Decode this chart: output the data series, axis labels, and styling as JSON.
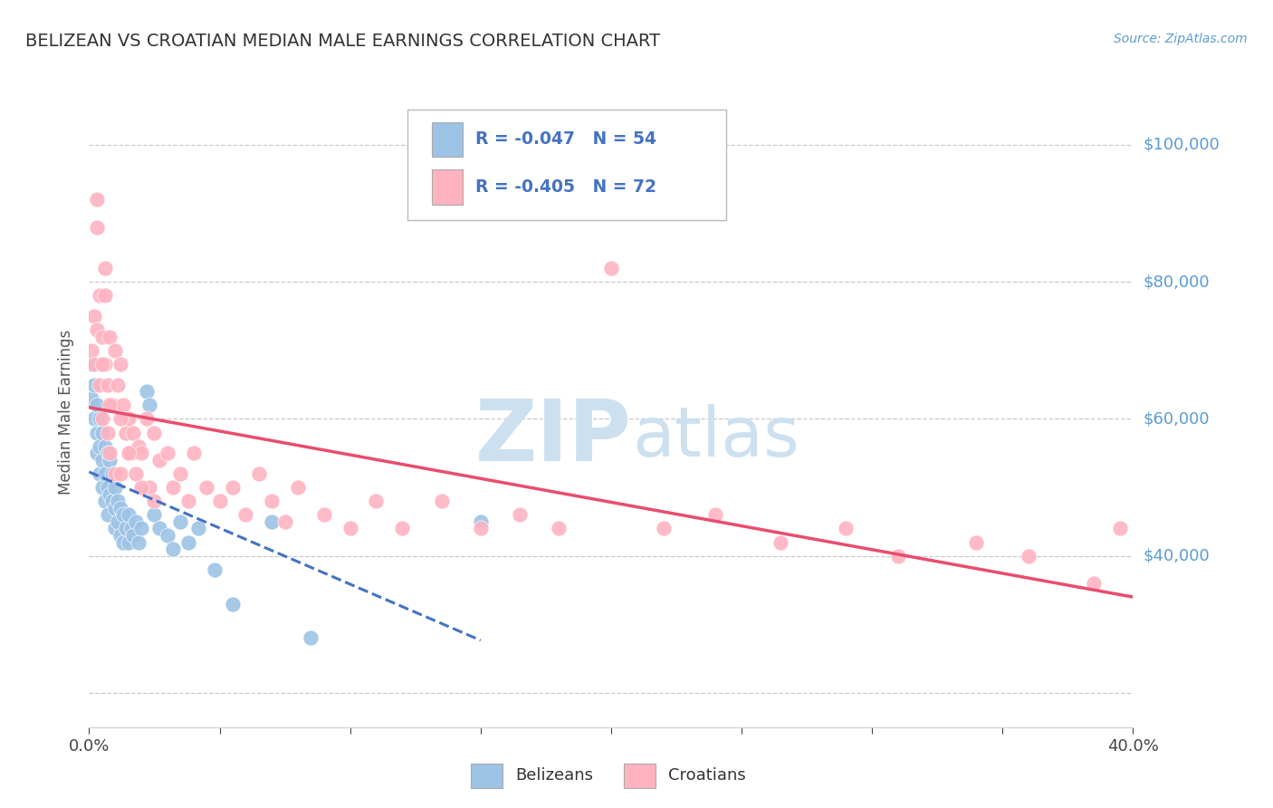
{
  "title": "BELIZEAN VS CROATIAN MEDIAN MALE EARNINGS CORRELATION CHART",
  "source_text": "Source: ZipAtlas.com",
  "ylabel": "Median Male Earnings",
  "xlim": [
    0.0,
    0.4
  ],
  "ylim": [
    15000,
    107000
  ],
  "xticks": [
    0.0,
    0.05,
    0.1,
    0.15,
    0.2,
    0.25,
    0.3,
    0.35,
    0.4
  ],
  "xticklabels": [
    "0.0%",
    "",
    "",
    "",
    "",
    "",
    "",
    "",
    "40.0%"
  ],
  "yticks": [
    20000,
    40000,
    60000,
    80000,
    100000
  ],
  "title_color": "#333333",
  "grid_color": "#bbbbbb",
  "right_label_color": "#5b9bd5",
  "belizean_color": "#9dc3e6",
  "croatian_color": "#ffb3c1",
  "belizean_line_color": "#4472c4",
  "croatian_line_color": "#e84d6e",
  "legend_text_color": "#4472c4",
  "watermark_color": "#cce0f0",
  "belizeans_x": [
    0.001,
    0.001,
    0.002,
    0.002,
    0.003,
    0.003,
    0.003,
    0.004,
    0.004,
    0.004,
    0.005,
    0.005,
    0.005,
    0.006,
    0.006,
    0.006,
    0.007,
    0.007,
    0.007,
    0.008,
    0.008,
    0.009,
    0.009,
    0.01,
    0.01,
    0.01,
    0.011,
    0.011,
    0.012,
    0.012,
    0.013,
    0.013,
    0.014,
    0.015,
    0.015,
    0.016,
    0.017,
    0.018,
    0.019,
    0.02,
    0.022,
    0.023,
    0.025,
    0.027,
    0.03,
    0.032,
    0.035,
    0.038,
    0.042,
    0.048,
    0.055,
    0.07,
    0.085,
    0.15
  ],
  "belizeans_y": [
    68000,
    63000,
    65000,
    60000,
    62000,
    58000,
    55000,
    60000,
    56000,
    52000,
    58000,
    54000,
    50000,
    56000,
    52000,
    48000,
    55000,
    50000,
    46000,
    54000,
    49000,
    52000,
    48000,
    50000,
    47000,
    44000,
    48000,
    45000,
    47000,
    43000,
    46000,
    42000,
    44000,
    46000,
    42000,
    44000,
    43000,
    45000,
    42000,
    44000,
    64000,
    62000,
    46000,
    44000,
    43000,
    41000,
    45000,
    42000,
    44000,
    38000,
    33000,
    45000,
    28000,
    45000
  ],
  "croatians_x": [
    0.001,
    0.002,
    0.002,
    0.003,
    0.003,
    0.004,
    0.004,
    0.005,
    0.005,
    0.006,
    0.006,
    0.007,
    0.007,
    0.008,
    0.008,
    0.009,
    0.01,
    0.01,
    0.011,
    0.012,
    0.012,
    0.013,
    0.014,
    0.015,
    0.016,
    0.017,
    0.018,
    0.019,
    0.02,
    0.022,
    0.023,
    0.025,
    0.027,
    0.03,
    0.032,
    0.035,
    0.038,
    0.04,
    0.045,
    0.05,
    0.055,
    0.06,
    0.065,
    0.07,
    0.075,
    0.08,
    0.09,
    0.1,
    0.11,
    0.12,
    0.135,
    0.15,
    0.165,
    0.18,
    0.2,
    0.22,
    0.24,
    0.265,
    0.29,
    0.31,
    0.34,
    0.36,
    0.385,
    0.395,
    0.005,
    0.008,
    0.015,
    0.02,
    0.025,
    0.003,
    0.006,
    0.012
  ],
  "croatians_y": [
    70000,
    75000,
    68000,
    73000,
    92000,
    78000,
    65000,
    72000,
    60000,
    68000,
    82000,
    65000,
    58000,
    72000,
    55000,
    62000,
    70000,
    52000,
    65000,
    68000,
    52000,
    62000,
    58000,
    60000,
    55000,
    58000,
    52000,
    56000,
    55000,
    60000,
    50000,
    58000,
    54000,
    55000,
    50000,
    52000,
    48000,
    55000,
    50000,
    48000,
    50000,
    46000,
    52000,
    48000,
    45000,
    50000,
    46000,
    44000,
    48000,
    44000,
    48000,
    44000,
    46000,
    44000,
    82000,
    44000,
    46000,
    42000,
    44000,
    40000,
    42000,
    40000,
    36000,
    44000,
    68000,
    62000,
    55000,
    50000,
    48000,
    88000,
    78000,
    60000
  ]
}
